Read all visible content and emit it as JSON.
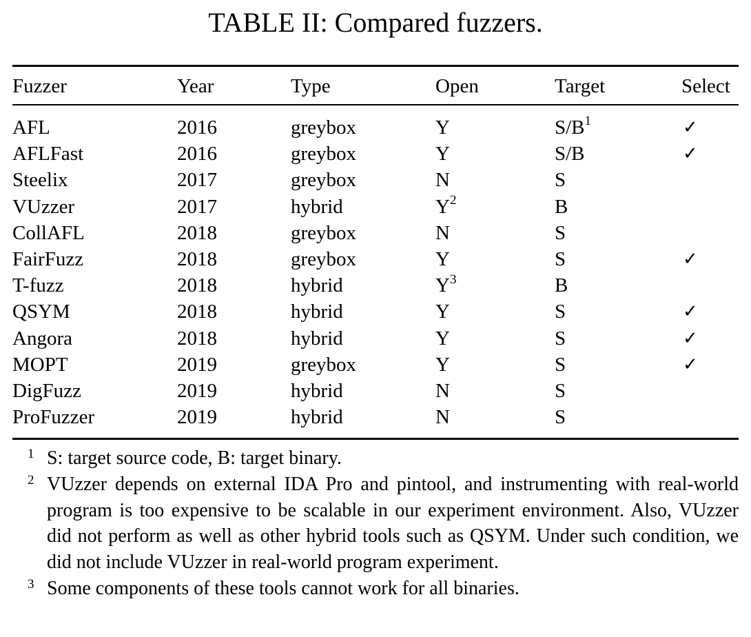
{
  "caption": "TABLE II: Compared fuzzers.",
  "columns": [
    "Fuzzer",
    "Year",
    "Type",
    "Open",
    "Target",
    "Select"
  ],
  "rows": [
    {
      "fuzzer": "AFL",
      "year": "2016",
      "type": "greybox",
      "open": "Y",
      "open_sup": "",
      "target": "S/B",
      "target_sup": "1",
      "select": "✓"
    },
    {
      "fuzzer": "AFLFast",
      "year": "2016",
      "type": "greybox",
      "open": "Y",
      "open_sup": "",
      "target": "S/B",
      "target_sup": "",
      "select": "✓"
    },
    {
      "fuzzer": "Steelix",
      "year": "2017",
      "type": "greybox",
      "open": "N",
      "open_sup": "",
      "target": "S",
      "target_sup": "",
      "select": ""
    },
    {
      "fuzzer": "VUzzer",
      "year": "2017",
      "type": "hybrid",
      "open": "Y",
      "open_sup": "2",
      "target": "B",
      "target_sup": "",
      "select": ""
    },
    {
      "fuzzer": "CollAFL",
      "year": "2018",
      "type": "greybox",
      "open": "N",
      "open_sup": "",
      "target": "S",
      "target_sup": "",
      "select": ""
    },
    {
      "fuzzer": "FairFuzz",
      "year": "2018",
      "type": "greybox",
      "open": "Y",
      "open_sup": "",
      "target": "S",
      "target_sup": "",
      "select": "✓"
    },
    {
      "fuzzer": "T-fuzz",
      "year": "2018",
      "type": "hybrid",
      "open": "Y",
      "open_sup": "3",
      "target": "B",
      "target_sup": "",
      "select": ""
    },
    {
      "fuzzer": "QSYM",
      "year": "2018",
      "type": "hybrid",
      "open": "Y",
      "open_sup": "",
      "target": "S",
      "target_sup": "",
      "select": "✓"
    },
    {
      "fuzzer": "Angora",
      "year": "2018",
      "type": "hybrid",
      "open": "Y",
      "open_sup": "",
      "target": "S",
      "target_sup": "",
      "select": "✓"
    },
    {
      "fuzzer": "MOPT",
      "year": "2019",
      "type": "greybox",
      "open": "Y",
      "open_sup": "",
      "target": "S",
      "target_sup": "",
      "select": "✓"
    },
    {
      "fuzzer": "DigFuzz",
      "year": "2019",
      "type": "hybrid",
      "open": "N",
      "open_sup": "",
      "target": "S",
      "target_sup": "",
      "select": ""
    },
    {
      "fuzzer": "ProFuzzer",
      "year": "2019",
      "type": "hybrid",
      "open": "N",
      "open_sup": "",
      "target": "S",
      "target_sup": "",
      "select": ""
    }
  ],
  "footnotes": [
    {
      "mark": "1",
      "text": "S: target source code, B: target binary."
    },
    {
      "mark": "2",
      "text": "VUzzer depends on external IDA Pro and pintool, and instrumenting with real-world program is too expensive to be scalable in our experiment environment. Also, VUzzer did not perform as well as other hybrid tools such as QSYM. Under such condition, we did not include VUzzer in real-world program experiment."
    },
    {
      "mark": "3",
      "text": "Some components of these tools cannot work for all binaries."
    }
  ]
}
